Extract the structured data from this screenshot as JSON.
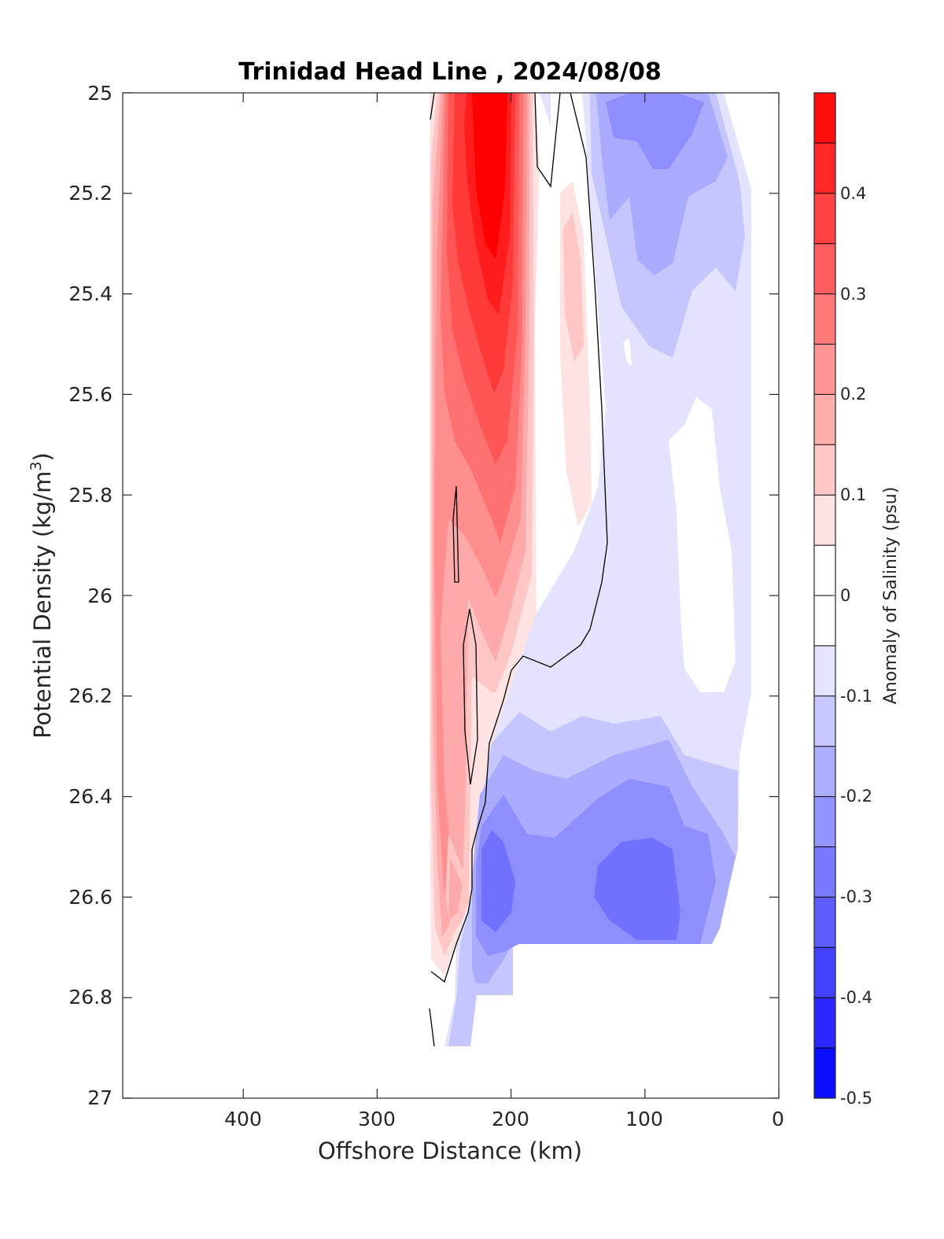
{
  "chart_data": {
    "type": "filled-contour",
    "title": "Trinidad Head Line , 2024/08/08",
    "xlabel": "Offshore Distance (km)",
    "ylabel_text": "Potential Density (kg/m",
    "ylabel_superscript": "3",
    "ylabel_close": ")",
    "colorbar_label": "Anomaly of Salinity (psu)",
    "x_ticks": [
      "400",
      "300",
      "200",
      "100",
      "0"
    ],
    "y_ticks": [
      "25",
      "25.2",
      "25.4",
      "25.6",
      "25.8",
      "26",
      "26.2",
      "26.4",
      "26.6",
      "26.8",
      "27"
    ],
    "colorbar_ticks": [
      "0.4",
      "0.3",
      "0.2",
      "0.1",
      "0",
      "-0.1",
      "-0.2",
      "-0.3",
      "-0.4",
      "-0.5"
    ],
    "xlim": [
      490,
      0
    ],
    "x_reversed": true,
    "ylim": [
      25,
      27
    ],
    "y_reversed": true,
    "clim": [
      -0.5,
      0.5
    ],
    "contour_step": 0.05,
    "grid": false,
    "colormap": "blue-white-red",
    "colormap_colors": {
      "negative": "#0000ff",
      "zero": "#ffffff",
      "positive": "#ff0000"
    },
    "contour_line_color": "#000000",
    "zero_contour_line": true,
    "approx_core_features": [
      {
        "name": "positive core",
        "x": 215,
        "y": 25.3,
        "value": 0.45
      },
      {
        "name": "positive secondary",
        "x": 160,
        "y": 25.45,
        "value": 0.1
      },
      {
        "name": "negative surface",
        "x": 90,
        "y": 25.1,
        "value": -0.2
      },
      {
        "name": "negative deep",
        "x": 210,
        "y": 26.6,
        "value": -0.25
      },
      {
        "name": "negative deep offshore-mid",
        "x": 80,
        "y": 26.6,
        "value": -0.25
      }
    ]
  }
}
